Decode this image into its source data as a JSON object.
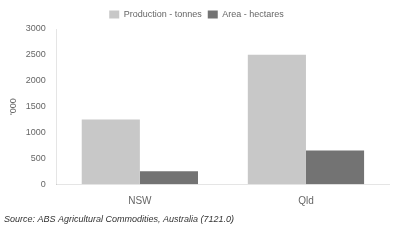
{
  "chart_data": {
    "type": "bar",
    "categories": [
      "NSW",
      "Qld"
    ],
    "series": [
      {
        "name": "Production - tonnes",
        "color": "#c8c8c8",
        "values": [
          1250,
          2500
        ]
      },
      {
        "name": "Area - hectares",
        "color": "#737373",
        "values": [
          250,
          650
        ]
      }
    ],
    "y_label": "'000",
    "ylim": [
      0,
      3000
    ],
    "yticks": [
      0,
      500,
      1000,
      1500,
      2000,
      2500,
      3000
    ],
    "grid": false,
    "legend": "top",
    "annotations": [
      "Source: ABS Agricultural Commodities, Australia (7121.0)"
    ]
  }
}
